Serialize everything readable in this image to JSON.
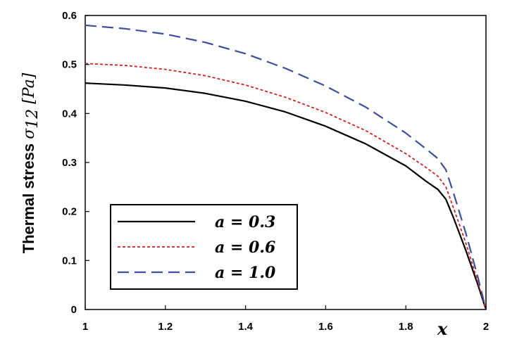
{
  "chart_data": {
    "type": "line",
    "xlabel": "x",
    "ylabel": {
      "prefix": "Thermal stress ",
      "symbol": "σ",
      "subscript": "12",
      "unit": " [Pa]"
    },
    "xlim": [
      1,
      2
    ],
    "ylim": [
      0,
      0.6
    ],
    "x_ticks": [
      "1",
      "1.2",
      "1.4",
      "1.6",
      "1.8",
      "2"
    ],
    "y_ticks": [
      "0",
      "0.1",
      "0.2",
      "0.3",
      "0.4",
      "0.5",
      "0.6"
    ],
    "grid": false,
    "legend_position": "bottom-left",
    "series": [
      {
        "name": "a = 0.3",
        "color": "#000000",
        "style": "solid",
        "points": [
          [
            1.0,
            0.462
          ],
          [
            1.1,
            0.458
          ],
          [
            1.2,
            0.452
          ],
          [
            1.3,
            0.441
          ],
          [
            1.4,
            0.425
          ],
          [
            1.5,
            0.403
          ],
          [
            1.6,
            0.374
          ],
          [
            1.7,
            0.338
          ],
          [
            1.8,
            0.293
          ],
          [
            1.85,
            0.262
          ],
          [
            1.88,
            0.245
          ],
          [
            1.9,
            0.225
          ],
          [
            1.92,
            0.185
          ],
          [
            1.95,
            0.12
          ],
          [
            1.98,
            0.05
          ],
          [
            2.0,
            0.0
          ]
        ]
      },
      {
        "name": "a = 0.6",
        "color": "#cc2222",
        "style": "dotted",
        "points": [
          [
            1.0,
            0.502
          ],
          [
            1.1,
            0.498
          ],
          [
            1.2,
            0.49
          ],
          [
            1.3,
            0.477
          ],
          [
            1.4,
            0.458
          ],
          [
            1.5,
            0.433
          ],
          [
            1.6,
            0.402
          ],
          [
            1.7,
            0.365
          ],
          [
            1.8,
            0.318
          ],
          [
            1.85,
            0.29
          ],
          [
            1.88,
            0.272
          ],
          [
            1.9,
            0.25
          ],
          [
            1.92,
            0.205
          ],
          [
            1.95,
            0.135
          ],
          [
            1.98,
            0.055
          ],
          [
            2.0,
            0.0
          ]
        ]
      },
      {
        "name": "a = 1.0",
        "color": "#3d4f9a",
        "style": "dashed",
        "points": [
          [
            1.0,
            0.58
          ],
          [
            1.1,
            0.573
          ],
          [
            1.2,
            0.562
          ],
          [
            1.3,
            0.545
          ],
          [
            1.4,
            0.522
          ],
          [
            1.5,
            0.492
          ],
          [
            1.6,
            0.456
          ],
          [
            1.7,
            0.413
          ],
          [
            1.8,
            0.36
          ],
          [
            1.85,
            0.328
          ],
          [
            1.88,
            0.308
          ],
          [
            1.9,
            0.285
          ],
          [
            1.92,
            0.235
          ],
          [
            1.95,
            0.155
          ],
          [
            1.98,
            0.065
          ],
          [
            2.0,
            0.0
          ]
        ]
      }
    ]
  }
}
